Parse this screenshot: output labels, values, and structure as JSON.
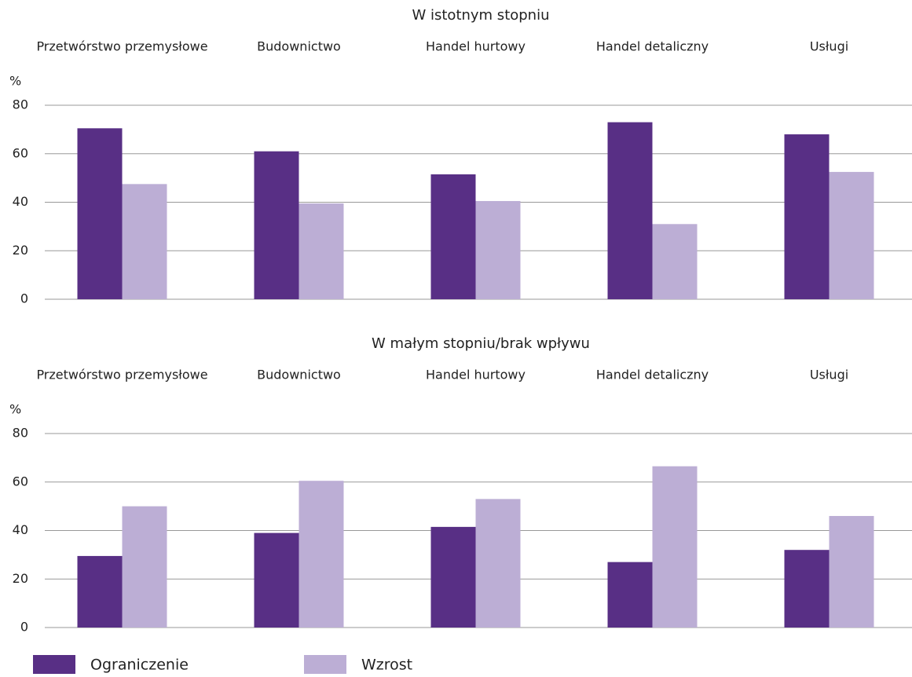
{
  "chart_data": [
    {
      "type": "bar",
      "title": "W istotnym stopniu",
      "ylabel": "%",
      "categories": [
        "Przetwórstwo przemysłowe",
        "Budownictwo",
        "Handel hurtowy",
        "Handel detaliczny",
        "Usługi"
      ],
      "series": [
        {
          "color": "#582f85",
          "values": [
            70.5,
            61,
            51.5,
            73,
            68
          ]
        },
        {
          "color": "#bcaed5",
          "values": [
            47.5,
            39.5,
            40.5,
            31,
            52.5
          ]
        }
      ],
      "ylim": [
        0,
        80
      ],
      "yticks": [
        0,
        20,
        40,
        60,
        80
      ],
      "grid": true
    },
    {
      "type": "bar",
      "title": "W małym stopniu/brak wpływu",
      "ylabel": "%",
      "categories": [
        "Przetwórstwo przemysłowe",
        "Budownictwo",
        "Handel hurtowy",
        "Handel detaliczny",
        "Usługi"
      ],
      "series": [
        {
          "name": "Ograniczenie",
          "color": "#582f85",
          "values": [
            29.5,
            39,
            41.5,
            27,
            32
          ]
        },
        {
          "name": "Wzrost",
          "color": "#bcaed5",
          "values": [
            50,
            60.5,
            53,
            66.5,
            46
          ]
        }
      ],
      "ylim": [
        0,
        80
      ],
      "yticks": [
        0,
        20,
        40,
        60,
        80
      ],
      "grid": true
    }
  ]
}
